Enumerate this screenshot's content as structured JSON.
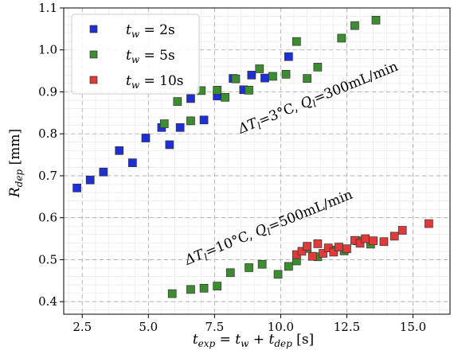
{
  "chart_data": {
    "type": "scatter",
    "xlabel": "t_exp = t_w + t_dep [s]",
    "ylabel": "R_dep [mm]",
    "xlim": [
      1.8,
      16.4
    ],
    "ylim": [
      0.37,
      1.1
    ],
    "xticks": [
      "2.5",
      "5.0",
      "7.5",
      "10.0",
      "12.5",
      "15.0"
    ],
    "yticks": [
      "0.4",
      "0.5",
      "0.6",
      "0.7",
      "0.8",
      "0.9",
      "1.0",
      "1.1"
    ],
    "grid": true,
    "legend_position": "top-left",
    "annotations": [
      {
        "text": "ΔT_l=3°C, Q_l=300mL/min"
      },
      {
        "text": "ΔT_l=10°C, Q_l=500mL/min"
      }
    ],
    "series": [
      {
        "name": "t_w = 2s",
        "color": "#1f2fd6",
        "points": [
          [
            2.3,
            0.671
          ],
          [
            2.8,
            0.69
          ],
          [
            3.3,
            0.709
          ],
          [
            3.9,
            0.76
          ],
          [
            4.4,
            0.731
          ],
          [
            4.9,
            0.79
          ],
          [
            5.5,
            0.815
          ],
          [
            5.8,
            0.774
          ],
          [
            6.2,
            0.815
          ],
          [
            6.6,
            0.884
          ],
          [
            7.1,
            0.833
          ],
          [
            7.6,
            0.89
          ],
          [
            8.2,
            0.932
          ],
          [
            8.6,
            0.905
          ],
          [
            8.9,
            0.94
          ],
          [
            9.4,
            0.933
          ],
          [
            10.3,
            0.984
          ]
        ]
      },
      {
        "name": "t_w = 5s",
        "color": "#3c8d2f",
        "points": [
          [
            5.6,
            0.824
          ],
          [
            6.1,
            0.877
          ],
          [
            6.6,
            0.831
          ],
          [
            7.0,
            0.903
          ],
          [
            7.6,
            0.904
          ],
          [
            7.9,
            0.887
          ],
          [
            8.3,
            0.931
          ],
          [
            8.8,
            0.904
          ],
          [
            9.2,
            0.955
          ],
          [
            9.7,
            0.937
          ],
          [
            10.2,
            0.942
          ],
          [
            10.6,
            1.02
          ],
          [
            11.0,
            0.932
          ],
          [
            11.4,
            0.959
          ],
          [
            12.3,
            1.028
          ],
          [
            12.8,
            1.058
          ],
          [
            13.6,
            1.071
          ],
          [
            5.9,
            0.419
          ],
          [
            6.6,
            0.429
          ],
          [
            7.1,
            0.432
          ],
          [
            7.6,
            0.437
          ],
          [
            8.1,
            0.469
          ],
          [
            8.8,
            0.481
          ],
          [
            9.3,
            0.489
          ],
          [
            9.9,
            0.465
          ],
          [
            10.3,
            0.484
          ],
          [
            10.6,
            0.497
          ],
          [
            11.0,
            0.527
          ],
          [
            11.4,
            0.507
          ],
          [
            12.0,
            0.523
          ],
          [
            12.4,
            0.521
          ],
          [
            12.9,
            0.545
          ],
          [
            13.4,
            0.537
          ]
        ]
      },
      {
        "name": "t_w = 10s",
        "color": "#e03a3a",
        "points": [
          [
            10.6,
            0.512
          ],
          [
            10.8,
            0.52
          ],
          [
            11.0,
            0.532
          ],
          [
            11.2,
            0.508
          ],
          [
            11.4,
            0.538
          ],
          [
            11.6,
            0.515
          ],
          [
            11.8,
            0.528
          ],
          [
            12.0,
            0.518
          ],
          [
            12.2,
            0.53
          ],
          [
            12.5,
            0.526
          ],
          [
            12.8,
            0.546
          ],
          [
            13.0,
            0.539
          ],
          [
            13.2,
            0.55
          ],
          [
            13.5,
            0.545
          ],
          [
            13.9,
            0.543
          ],
          [
            14.3,
            0.556
          ],
          [
            14.6,
            0.57
          ],
          [
            15.6,
            0.586
          ]
        ]
      }
    ]
  }
}
